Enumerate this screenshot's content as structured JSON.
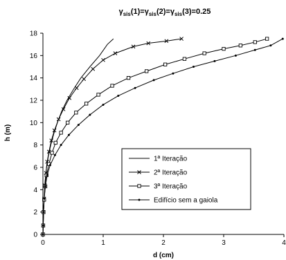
{
  "chart_data": {
    "type": "line",
    "title_parts": [
      {
        "text": "γ",
        "sub": false
      },
      {
        "text": "sis",
        "sub": true
      },
      {
        "text": "(1)=",
        "sub": false
      },
      {
        "text": "γ",
        "sub": false
      },
      {
        "text": "sis",
        "sub": true
      },
      {
        "text": "(2)=",
        "sub": false
      },
      {
        "text": "γ",
        "sub": false
      },
      {
        "text": "sis",
        "sub": true
      },
      {
        "text": "(3)=0.25",
        "sub": false
      }
    ],
    "xlabel": "d (cm)",
    "ylabel": "h (m)",
    "xlim": [
      0,
      4
    ],
    "ylim": [
      0,
      18
    ],
    "x_ticks": [
      0,
      1,
      2,
      3,
      4
    ],
    "y_ticks": [
      0,
      2,
      4,
      6,
      8,
      10,
      12,
      14,
      16,
      18
    ],
    "grid": false,
    "legend_position": "lower-right",
    "series": [
      {
        "name": "1ª Iteração",
        "marker": "none",
        "points": [
          [
            0,
            0
          ],
          [
            0.005,
            1
          ],
          [
            0.01,
            2
          ],
          [
            0.02,
            3
          ],
          [
            0.03,
            4
          ],
          [
            0.04,
            5
          ],
          [
            0.06,
            6
          ],
          [
            0.09,
            7
          ],
          [
            0.13,
            8
          ],
          [
            0.18,
            9
          ],
          [
            0.24,
            10
          ],
          [
            0.31,
            11
          ],
          [
            0.4,
            12
          ],
          [
            0.51,
            13
          ],
          [
            0.63,
            14
          ],
          [
            0.78,
            15
          ],
          [
            0.94,
            16
          ],
          [
            1.07,
            17
          ],
          [
            1.17,
            17.5
          ]
        ]
      },
      {
        "name": "2ª Iteração",
        "marker": "x",
        "points": [
          [
            0,
            0
          ],
          [
            0.004,
            0.8
          ],
          [
            0.01,
            2
          ],
          [
            0.02,
            3.2
          ],
          [
            0.03,
            4.4
          ],
          [
            0.05,
            5.5
          ],
          [
            0.07,
            6.5
          ],
          [
            0.1,
            7.4
          ],
          [
            0.14,
            8.4
          ],
          [
            0.19,
            9.3
          ],
          [
            0.26,
            10.3
          ],
          [
            0.34,
            11.2
          ],
          [
            0.44,
            12.2
          ],
          [
            0.56,
            13.1
          ],
          [
            0.68,
            13.9
          ],
          [
            0.83,
            14.8
          ],
          [
            1.0,
            15.6
          ],
          [
            1.2,
            16.2
          ],
          [
            1.5,
            16.8
          ],
          [
            1.75,
            17.1
          ],
          [
            2.05,
            17.3
          ],
          [
            2.3,
            17.5
          ]
        ]
      },
      {
        "name": "3ª Iteração",
        "marker": "square",
        "points": [
          [
            0,
            0
          ],
          [
            0.005,
            0.8
          ],
          [
            0.01,
            2
          ],
          [
            0.02,
            3.1
          ],
          [
            0.04,
            4.3
          ],
          [
            0.06,
            5.3
          ],
          [
            0.1,
            6.3
          ],
          [
            0.15,
            7.3
          ],
          [
            0.21,
            8.2
          ],
          [
            0.3,
            9.1
          ],
          [
            0.41,
            10.0
          ],
          [
            0.55,
            10.9
          ],
          [
            0.72,
            11.7
          ],
          [
            0.92,
            12.5
          ],
          [
            1.15,
            13.3
          ],
          [
            1.42,
            14.0
          ],
          [
            1.72,
            14.6
          ],
          [
            2.03,
            15.2
          ],
          [
            2.35,
            15.7
          ],
          [
            2.68,
            16.2
          ],
          [
            3.0,
            16.6
          ],
          [
            3.28,
            16.9
          ],
          [
            3.52,
            17.2
          ],
          [
            3.72,
            17.5
          ]
        ]
      },
      {
        "name": "Edifício sem a gaiola",
        "marker": "dot",
        "points": [
          [
            0,
            0
          ],
          [
            0.005,
            0.8
          ],
          [
            0.01,
            2
          ],
          [
            0.02,
            3.2
          ],
          [
            0.04,
            4.3
          ],
          [
            0.07,
            5.3
          ],
          [
            0.12,
            6.2
          ],
          [
            0.2,
            7.1
          ],
          [
            0.3,
            8.0
          ],
          [
            0.43,
            8.9
          ],
          [
            0.59,
            9.8
          ],
          [
            0.78,
            10.7
          ],
          [
            1.0,
            11.6
          ],
          [
            1.25,
            12.4
          ],
          [
            1.53,
            13.1
          ],
          [
            1.84,
            13.8
          ],
          [
            2.16,
            14.4
          ],
          [
            2.5,
            15.0
          ],
          [
            2.85,
            15.5
          ],
          [
            3.2,
            16.0
          ],
          [
            3.52,
            16.5
          ],
          [
            3.78,
            16.9
          ],
          [
            3.98,
            17.5
          ]
        ]
      }
    ]
  }
}
